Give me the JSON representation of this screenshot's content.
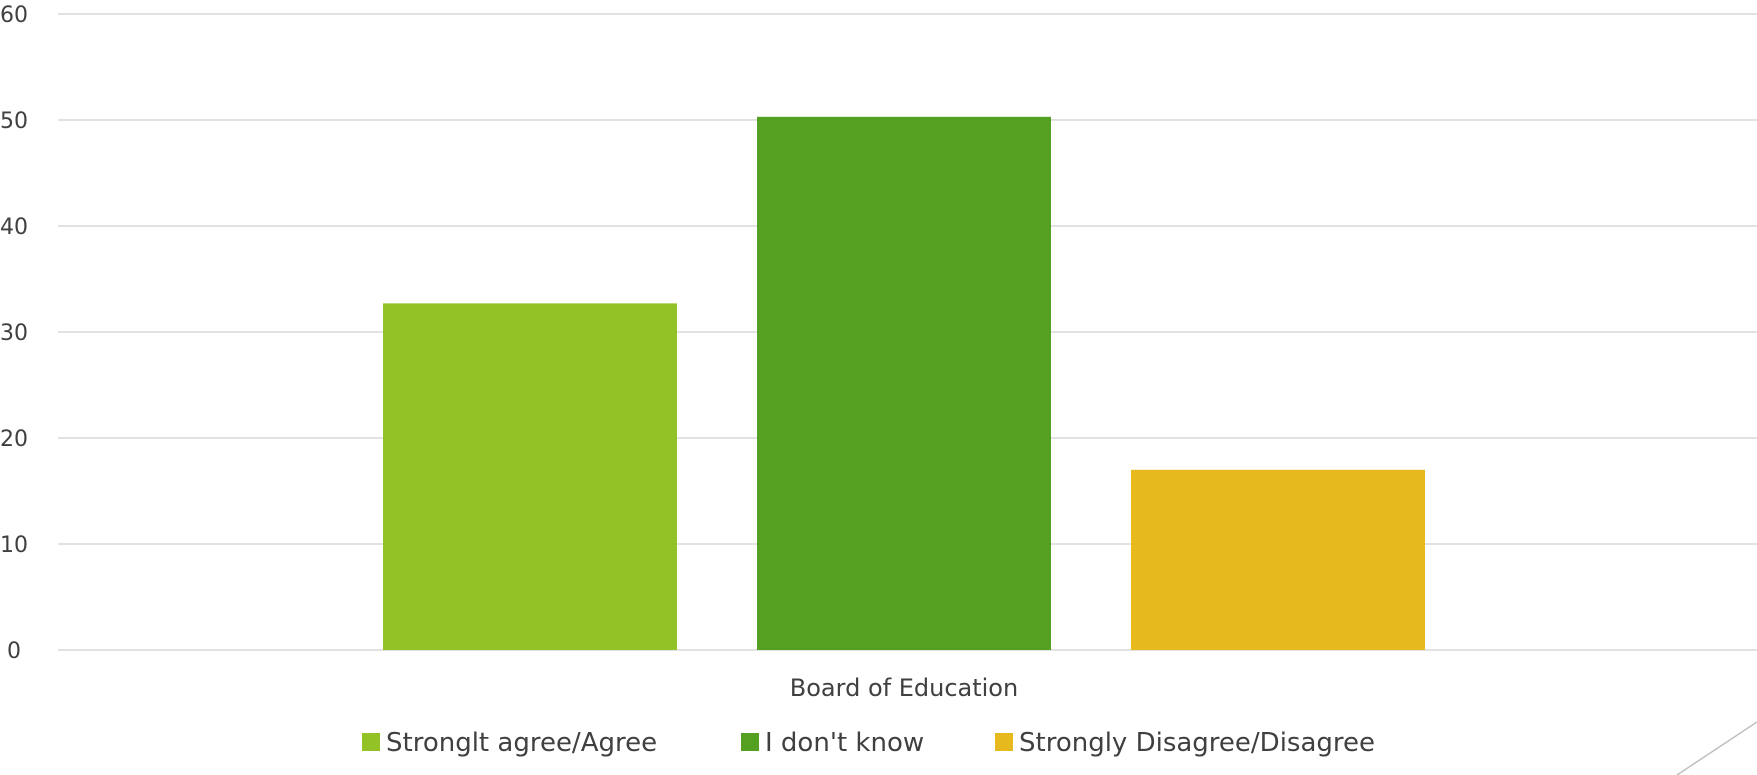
{
  "chart_data": {
    "type": "bar",
    "categories": [
      "Board of Education"
    ],
    "series": [
      {
        "name": "Stronglt agree/Agree",
        "values": [
          32.7
        ],
        "color": "#92C225"
      },
      {
        "name": "I don't know",
        "values": [
          50.3
        ],
        "color": "#54A021"
      },
      {
        "name": "Strongly Disagree/Disagree",
        "values": [
          17.0
        ],
        "color": "#E6B91E"
      }
    ],
    "ylim": [
      0,
      60
    ],
    "yticks": [
      "0",
      "10",
      "20",
      "30",
      "40",
      "50",
      "60"
    ],
    "grid": true,
    "legend_position": "bottom"
  }
}
